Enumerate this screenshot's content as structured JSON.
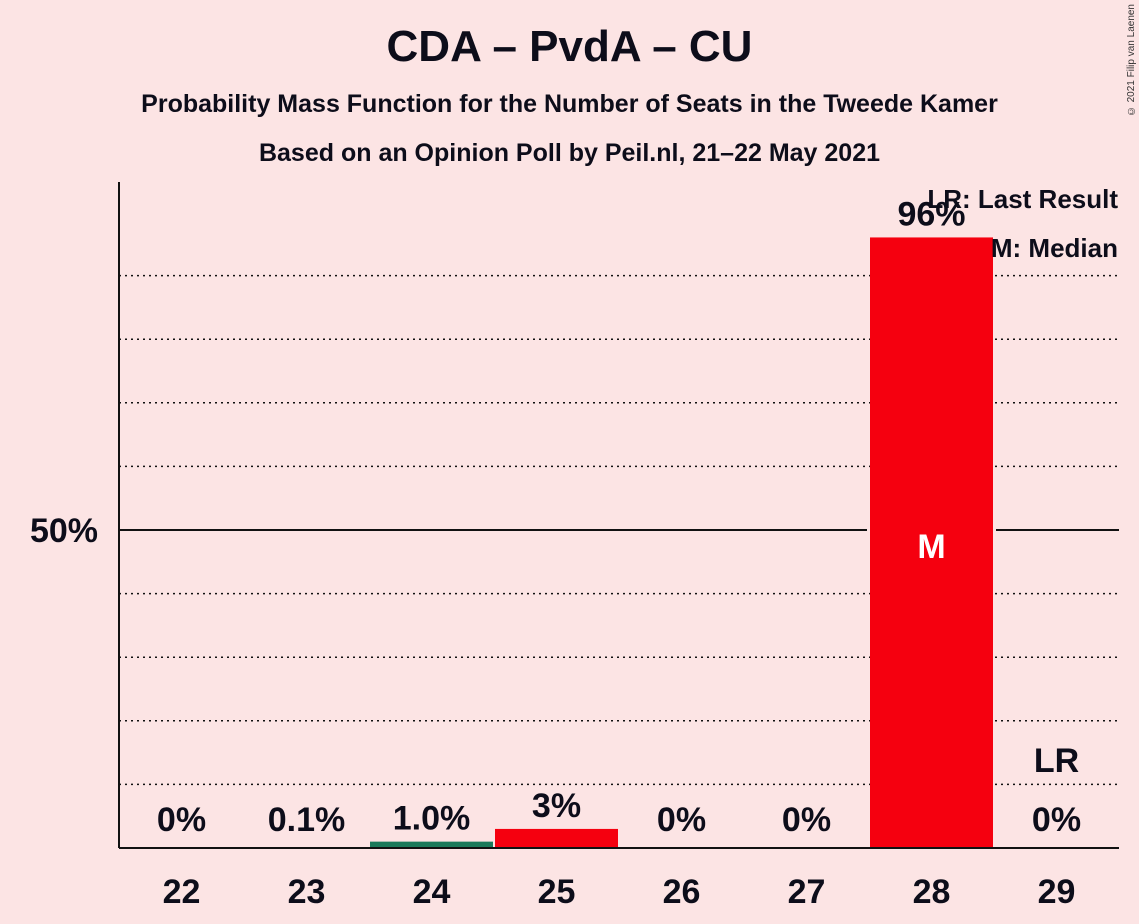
{
  "title": "CDA – PvdA – CU",
  "subtitle": "Probability Mass Function for the Number of Seats in the Tweede Kamer",
  "source": "Based on an Opinion Poll by Peil.nl, 21–22 May 2021",
  "copyright": "© 2021 Filip van Laenen",
  "legend": {
    "last_result": "LR: Last Result",
    "median": "M: Median"
  },
  "colors": {
    "background": "#fce4e4",
    "bar_red": "#f5000f",
    "bar_green": "#1a7a5a",
    "text": "#0d0d1a"
  },
  "chart_data": {
    "type": "bar",
    "categories": [
      "22",
      "23",
      "24",
      "25",
      "26",
      "27",
      "28",
      "29"
    ],
    "values": [
      0,
      0.1,
      1.0,
      3,
      0,
      0,
      96,
      0
    ],
    "value_labels": [
      "0%",
      "0.1%",
      "1.0%",
      "3%",
      "0%",
      "0%",
      "96%",
      "0%"
    ],
    "bar_colors": [
      "#f5000f",
      "#f5000f",
      "#1a7a5a",
      "#f5000f",
      "#f5000f",
      "#f5000f",
      "#f5000f",
      "#f5000f"
    ],
    "ylim": [
      0,
      105
    ],
    "y_tick_label": "50%",
    "y_tick_value": 50,
    "minor_gridlines": [
      10,
      20,
      30,
      40,
      60,
      70,
      80,
      90
    ],
    "median_seat": "28",
    "median_marker": "M",
    "last_result_seat": "29",
    "last_result_marker": "LR",
    "xlabel": "",
    "ylabel": ""
  }
}
